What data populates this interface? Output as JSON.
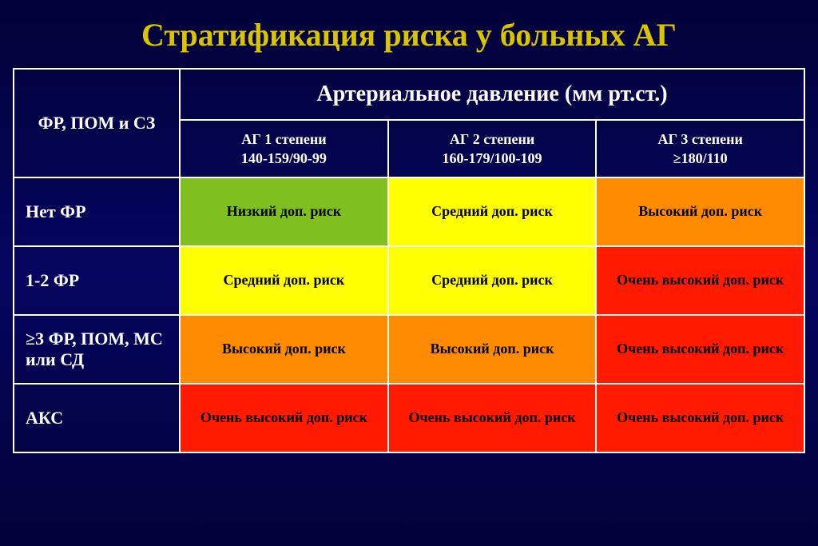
{
  "title": {
    "text": "Стратификация риска у больных АГ",
    "color": "#d8c400"
  },
  "colors": {
    "low": {
      "bg": "#7fbf1f",
      "fg": "#000000"
    },
    "medium": {
      "bg": "#ffff00",
      "fg": "#000000"
    },
    "high": {
      "bg": "#ff8c00",
      "fg": "#000000"
    },
    "veryhigh": {
      "bg": "#ff1a00",
      "fg": "#000000"
    },
    "header": {
      "bg": "transparent",
      "fg": "#ffffff"
    }
  },
  "table": {
    "corner": "ФР, ПОМ и СЗ",
    "span_header": "Артериальное давление (мм рт.ст.)",
    "cols": [
      {
        "line1": "АГ 1 степени",
        "line2": "140-159/90-99"
      },
      {
        "line1": "АГ 2 степени",
        "line2": "160-179/100-109"
      },
      {
        "line1": "АГ 3 степени",
        "line2": "≥180/110"
      }
    ],
    "rows": [
      {
        "label": "Нет ФР",
        "cells": [
          {
            "text": "Низкий доп. риск",
            "color": "low"
          },
          {
            "text": "Средний доп. риск",
            "color": "medium"
          },
          {
            "text": "Высокий доп. риск",
            "color": "high"
          }
        ]
      },
      {
        "label": "1-2 ФР",
        "cells": [
          {
            "text": "Средний доп. риск",
            "color": "medium"
          },
          {
            "text": "Средний доп. риск",
            "color": "medium"
          },
          {
            "text": "Очень высокий доп. риск",
            "color": "veryhigh"
          }
        ]
      },
      {
        "label": "≥3 ФР, ПОМ, МС или СД",
        "cells": [
          {
            "text": "Высокий доп. риск",
            "color": "high"
          },
          {
            "text": "Высокий доп. риск",
            "color": "high"
          },
          {
            "text": "Очень высокий доп. риск",
            "color": "veryhigh"
          }
        ]
      },
      {
        "label": "АКС",
        "cells": [
          {
            "text": "Очень высокий доп. риск",
            "color": "veryhigh"
          },
          {
            "text": "Очень высокий доп. риск",
            "color": "veryhigh"
          },
          {
            "text": "Очень высокий доп. риск",
            "color": "veryhigh"
          }
        ]
      }
    ]
  }
}
